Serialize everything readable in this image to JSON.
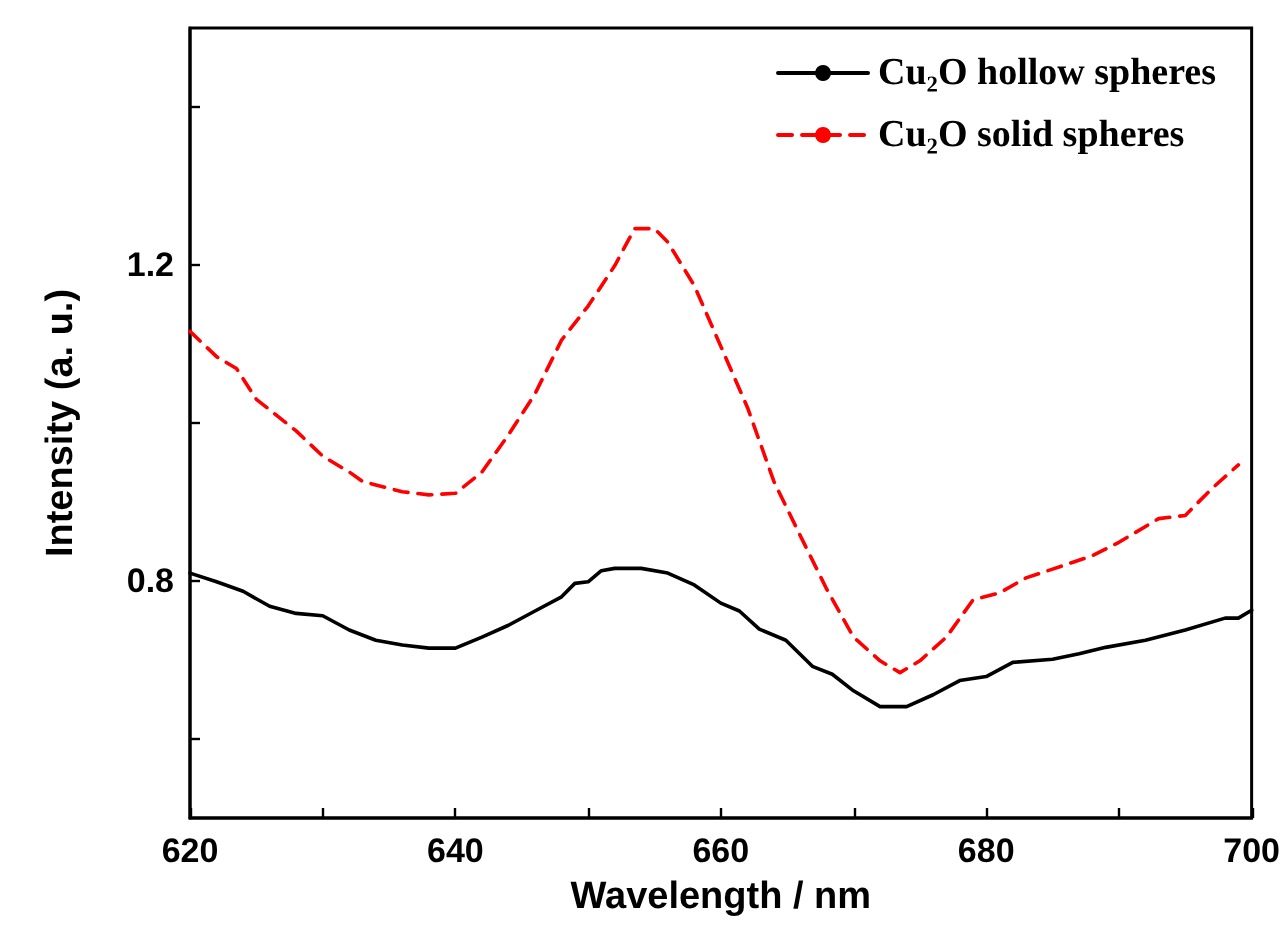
{
  "chart_data": {
    "type": "line",
    "xlabel": "Wavelength / nm",
    "ylabel": "Intensity (a. u.)",
    "xlim": [
      620,
      700
    ],
    "xticks": [
      620,
      {
        "value": 630,
        "label": null
      },
      640,
      {
        "value": 650,
        "label": null
      },
      660,
      {
        "value": 670,
        "label": null
      },
      680,
      {
        "value": 690,
        "label": null
      },
      700
    ],
    "ylim": [
      0.5,
      1.5
    ],
    "yticks": [
      {
        "value": 0.6,
        "label": null
      },
      0.8,
      {
        "value": 1.0,
        "label": null
      },
      1.2,
      {
        "value": 1.4,
        "label": null
      }
    ],
    "legend": "top right",
    "marker": "none",
    "series": [
      {
        "name": "Cu₂O hollow spheres",
        "color": "#000000",
        "line_style": "solid",
        "x": [
          620,
          622,
          624,
          626,
          628,
          630,
          632,
          634,
          636,
          638,
          640,
          642,
          644,
          646,
          648,
          649,
          650,
          651,
          652,
          654,
          656,
          658,
          660,
          661.4,
          662.9,
          664.9,
          666.9,
          668.4,
          670,
          672,
          674,
          676,
          678,
          680,
          682,
          685,
          687,
          689,
          692,
          695,
          698,
          699,
          700
        ],
        "values": [
          0.81,
          0.799,
          0.787,
          0.768,
          0.759,
          0.756,
          0.738,
          0.725,
          0.719,
          0.715,
          0.715,
          0.729,
          0.744,
          0.762,
          0.78,
          0.797,
          0.799,
          0.813,
          0.816,
          0.816,
          0.81,
          0.795,
          0.772,
          0.762,
          0.739,
          0.725,
          0.692,
          0.682,
          0.661,
          0.641,
          0.641,
          0.656,
          0.674,
          0.679,
          0.697,
          0.701,
          0.708,
          0.716,
          0.725,
          0.738,
          0.753,
          0.753,
          0.763
        ]
      },
      {
        "name": "Cu₂O solid spheres",
        "color": "#ff0000",
        "line_style": "dashed",
        "x": [
          620,
          622,
          623.5,
          625,
          628,
          630,
          632,
          633,
          636,
          638,
          640,
          642,
          644,
          646,
          648,
          650,
          652,
          653.5,
          655,
          656,
          658,
          660,
          662,
          664,
          666,
          668,
          670,
          672,
          673.5,
          675,
          677,
          679,
          681,
          683,
          685,
          688,
          690,
          693,
          695,
          697,
          699
        ],
        "values": [
          1.116,
          1.084,
          1.069,
          1.03,
          0.99,
          0.958,
          0.938,
          0.926,
          0.913,
          0.909,
          0.911,
          0.938,
          0.985,
          1.037,
          1.105,
          1.148,
          1.199,
          1.246,
          1.246,
          1.229,
          1.174,
          1.097,
          1.02,
          0.926,
          0.857,
          0.789,
          0.729,
          0.699,
          0.684,
          0.699,
          0.729,
          0.776,
          0.785,
          0.804,
          0.815,
          0.832,
          0.849,
          0.879,
          0.883,
          0.917,
          0.947
        ]
      }
    ]
  }
}
